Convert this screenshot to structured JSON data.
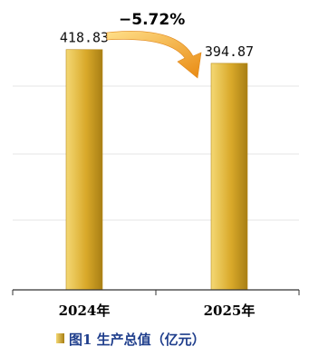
{
  "chart_data": {
    "type": "bar",
    "categories": [
      "2024年",
      "2025年"
    ],
    "values": [
      418.83,
      394.87
    ],
    "value_labels": [
      "418.83",
      "394.87"
    ],
    "change_label": "−5.72%",
    "legend": {
      "entries": [
        "图1  生产总值（亿元）"
      ],
      "placement": "bottom-left"
    },
    "ylim": [
      0,
      480
    ],
    "grid": true,
    "colors": {
      "bar_light": "#f4d874",
      "bar_mid": "#d9a92a",
      "bar_dark": "#a87f14",
      "arrow_light": "#ffe08a",
      "arrow_dark": "#e98a12",
      "grid": "#e4e4e4",
      "axis": "#333333",
      "legend_text": "#1f3e8c"
    }
  }
}
